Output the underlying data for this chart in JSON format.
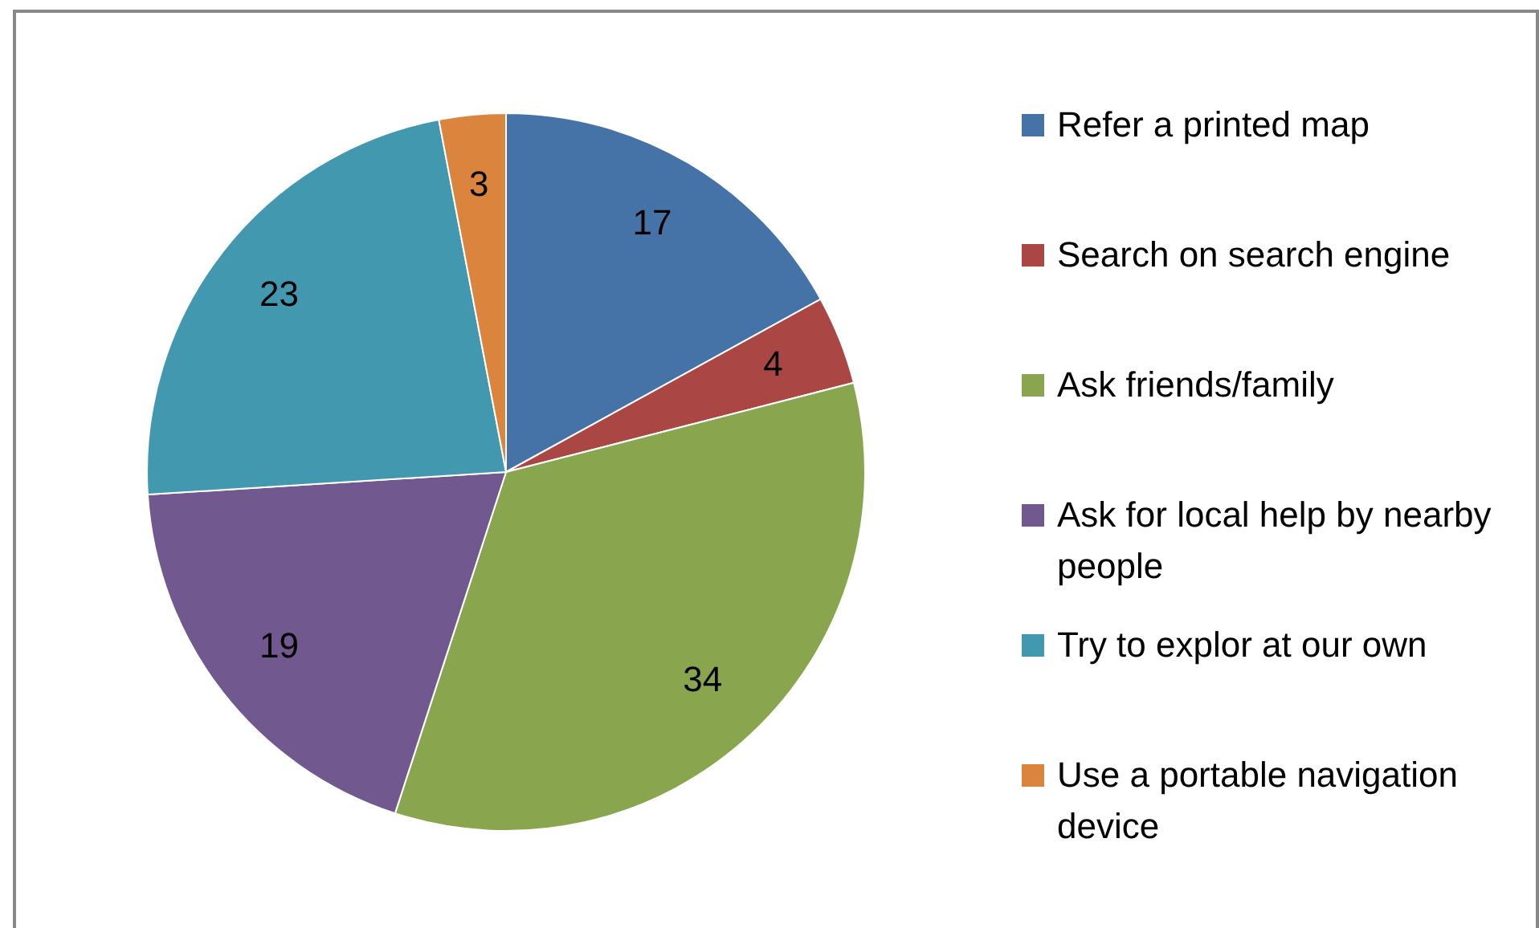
{
  "chart_data": {
    "type": "pie",
    "categories": [
      "Refer a printed map",
      "Search on search engine",
      "Ask friends/family",
      "Ask for local help by nearby people",
      "Try to explor at our own",
      "Use a portable navigation device"
    ],
    "values": [
      17,
      4,
      34,
      19,
      23,
      3
    ],
    "colors": [
      "#4572a7",
      "#aa4643",
      "#89a54e",
      "#71588f",
      "#4198af",
      "#db843d"
    ],
    "data_labels": true,
    "legend": "right"
  }
}
